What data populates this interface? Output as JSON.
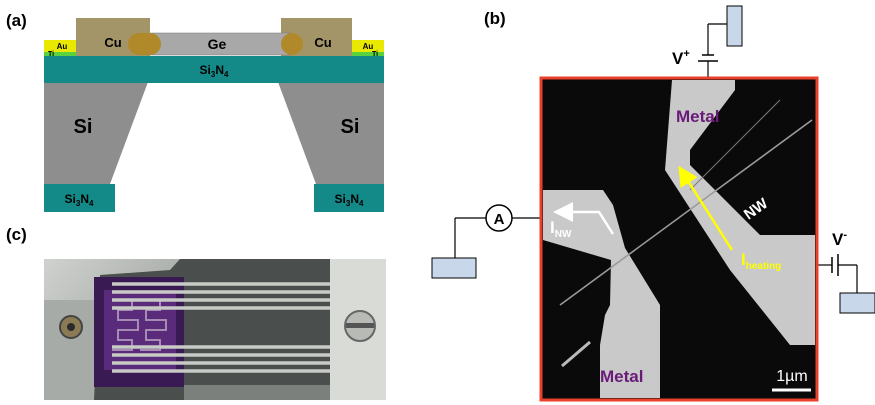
{
  "panels": {
    "a": {
      "label": "(a)",
      "layers": {
        "cu_left": "Cu",
        "cu_right": "Cu",
        "ge": "Ge",
        "au_left": "Au",
        "au_right": "Au",
        "ti_left": "Ti",
        "ti_right": "Ti",
        "si_left": "Si",
        "si_right": "Si",
        "si3n4_top": {
          "base": "Si",
          "sub1": "3",
          "mid": "N",
          "sub2": "4"
        },
        "si3n4_bl": {
          "base": "Si",
          "sub1": "3",
          "mid": "N",
          "sub2": "4"
        },
        "si3n4_br": {
          "base": "Si",
          "sub1": "3",
          "mid": "N",
          "sub2": "4"
        }
      },
      "colors": {
        "cu": "#a39567",
        "ge": "#a8a8a8",
        "au": "#e8e800",
        "ti": "#5ad23c",
        "si3n4": "#148a88",
        "si": "#8e8e8e",
        "cu_contact": "#b08a2a"
      }
    },
    "b": {
      "label": "(b)",
      "vplus": {
        "base": "V",
        "sup": "+"
      },
      "vminus": {
        "base": "V",
        "sup": "-"
      },
      "ammeter": "A",
      "metal_top": "Metal",
      "metal_bottom": "Metal",
      "nw": "NW",
      "i_nw": {
        "base": "I",
        "sub": "NW"
      },
      "i_heating": {
        "base": "I",
        "sub": "heating"
      },
      "scale": "1µm",
      "colors": {
        "frame": "#e8402a",
        "metal_text": "#6a1b7a",
        "heating_arrow": "#ffff00",
        "pad": "#c8d8ea"
      }
    },
    "c": {
      "label": "(c)"
    }
  }
}
